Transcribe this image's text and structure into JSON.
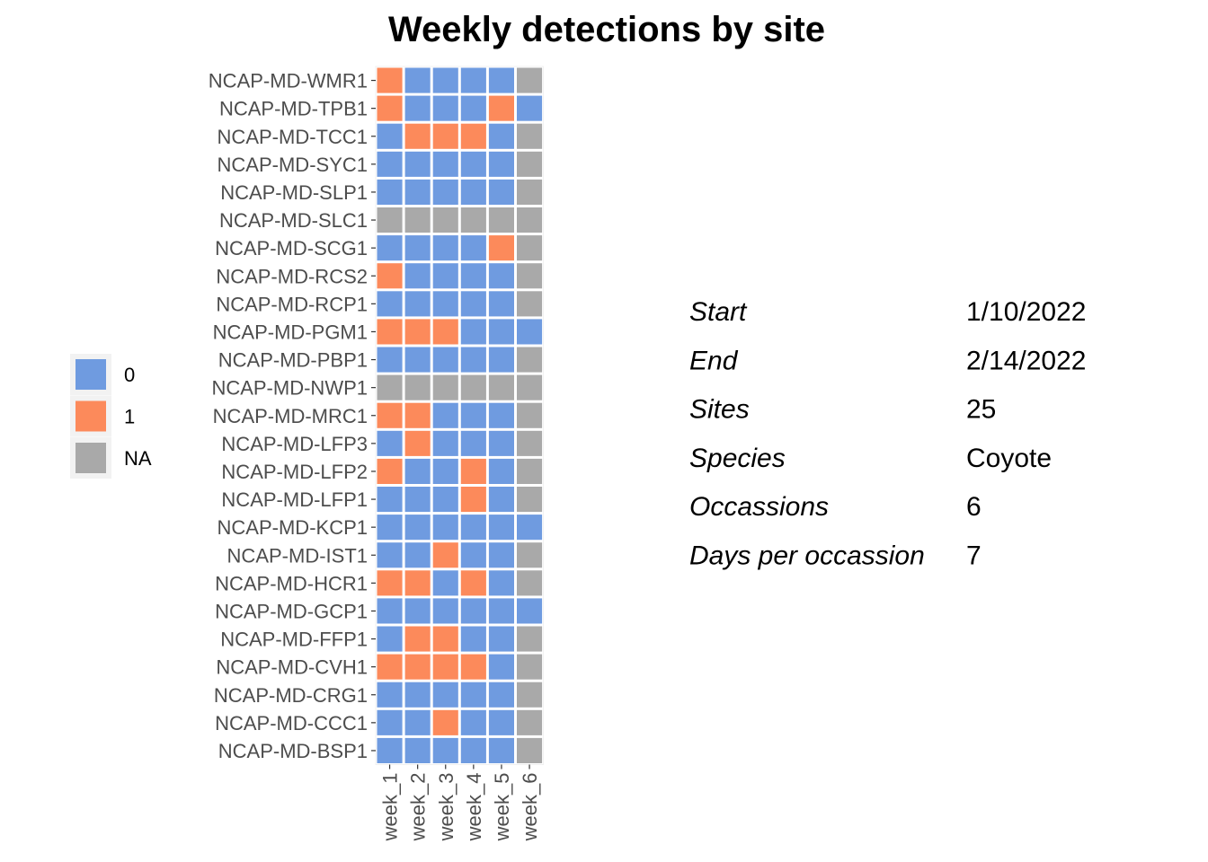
{
  "chart_data": {
    "type": "heatmap",
    "title": "Weekly detections by site",
    "xlabel": "",
    "ylabel": "",
    "x": [
      "week_1",
      "week_2",
      "week_3",
      "week_4",
      "week_5",
      "week_6"
    ],
    "y": [
      "NCAP-MD-WMR1",
      "NCAP-MD-TPB1",
      "NCAP-MD-TCC1",
      "NCAP-MD-SYC1",
      "NCAP-MD-SLP1",
      "NCAP-MD-SLC1",
      "NCAP-MD-SCG1",
      "NCAP-MD-RCS2",
      "NCAP-MD-RCP1",
      "NCAP-MD-PGM1",
      "NCAP-MD-PBP1",
      "NCAP-MD-NWP1",
      "NCAP-MD-MRC1",
      "NCAP-MD-LFP3",
      "NCAP-MD-LFP2",
      "NCAP-MD-LFP1",
      "NCAP-MD-KCP1",
      "NCAP-MD-IST1",
      "NCAP-MD-HCR1",
      "NCAP-MD-GCP1",
      "NCAP-MD-FFP1",
      "NCAP-MD-CVH1",
      "NCAP-MD-CRG1",
      "NCAP-MD-CCC1",
      "NCAP-MD-BSP1"
    ],
    "values": [
      [
        "1",
        "0",
        "0",
        "0",
        "0",
        "NA"
      ],
      [
        "1",
        "0",
        "0",
        "0",
        "1",
        "0"
      ],
      [
        "0",
        "1",
        "1",
        "1",
        "0",
        "NA"
      ],
      [
        "0",
        "0",
        "0",
        "0",
        "0",
        "NA"
      ],
      [
        "0",
        "0",
        "0",
        "0",
        "0",
        "NA"
      ],
      [
        "NA",
        "NA",
        "NA",
        "NA",
        "NA",
        "NA"
      ],
      [
        "0",
        "0",
        "0",
        "0",
        "1",
        "NA"
      ],
      [
        "1",
        "0",
        "0",
        "0",
        "0",
        "NA"
      ],
      [
        "0",
        "0",
        "0",
        "0",
        "0",
        "NA"
      ],
      [
        "1",
        "1",
        "1",
        "0",
        "0",
        "0"
      ],
      [
        "0",
        "0",
        "0",
        "0",
        "0",
        "NA"
      ],
      [
        "NA",
        "NA",
        "NA",
        "NA",
        "NA",
        "NA"
      ],
      [
        "1",
        "1",
        "0",
        "0",
        "0",
        "NA"
      ],
      [
        "0",
        "1",
        "0",
        "0",
        "0",
        "NA"
      ],
      [
        "1",
        "0",
        "0",
        "1",
        "0",
        "NA"
      ],
      [
        "0",
        "0",
        "0",
        "1",
        "0",
        "NA"
      ],
      [
        "0",
        "0",
        "0",
        "0",
        "0",
        "0"
      ],
      [
        "0",
        "0",
        "1",
        "0",
        "0",
        "NA"
      ],
      [
        "1",
        "1",
        "0",
        "1",
        "0",
        "NA"
      ],
      [
        "0",
        "0",
        "0",
        "0",
        "0",
        "0"
      ],
      [
        "0",
        "1",
        "1",
        "0",
        "0",
        "NA"
      ],
      [
        "1",
        "1",
        "1",
        "1",
        "0",
        "NA"
      ],
      [
        "0",
        "0",
        "0",
        "0",
        "0",
        "NA"
      ],
      [
        "0",
        "0",
        "1",
        "0",
        "0",
        "NA"
      ],
      [
        "0",
        "0",
        "0",
        "0",
        "0",
        "NA"
      ]
    ],
    "legend": {
      "position": "left",
      "entries": [
        {
          "label": "0",
          "color": "#6f9be0"
        },
        {
          "label": "1",
          "color": "#fc8a5b"
        },
        {
          "label": "NA",
          "color": "#a9a9a9"
        }
      ]
    },
    "grid": false
  },
  "info_table": [
    {
      "key": "Start",
      "value": "1/10/2022"
    },
    {
      "key": "End",
      "value": "2/14/2022"
    },
    {
      "key": "Sites",
      "value": "25"
    },
    {
      "key": "Species",
      "value": "Coyote"
    },
    {
      "key": "Occassions",
      "value": "6"
    },
    {
      "key": "Days per occassion",
      "value": "7"
    }
  ]
}
